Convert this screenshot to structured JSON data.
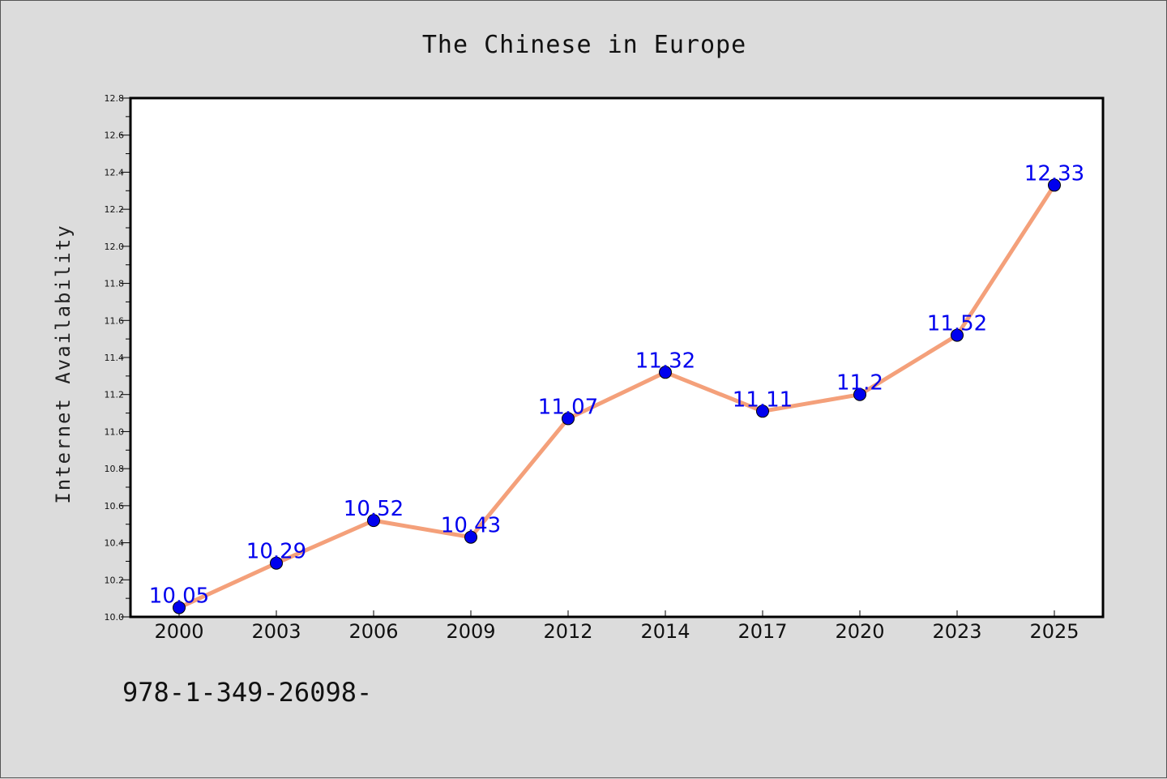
{
  "chart_data": {
    "type": "line",
    "title": "The Chinese in Europe",
    "xlabel": "",
    "ylabel": "Internet Availability",
    "categories": [
      "2000",
      "2003",
      "2006",
      "2009",
      "2012",
      "2014",
      "2017",
      "2020",
      "2023",
      "2025"
    ],
    "series": [
      {
        "values": [
          10.05,
          10.29,
          10.52,
          10.43,
          11.07,
          11.32,
          11.11,
          11.2,
          11.52,
          12.33
        ],
        "data_labels": [
          "10.05",
          "10.29",
          "10.52",
          "10.43",
          "11.07",
          "11.32",
          "11.11",
          "11.2",
          "11.52",
          "12.33"
        ],
        "line_color": "#f4a07a",
        "marker_color": "#0000ee"
      }
    ],
    "ylim": [
      10.0,
      12.8
    ],
    "yticks": [
      "10.0",
      "10.2",
      "10.4",
      "10.6",
      "10.8",
      "11.0",
      "11.2",
      "11.4",
      "11.6",
      "11.8",
      "12.0",
      "12.2",
      "12.4",
      "12.6",
      "12.8"
    ],
    "grid": false,
    "legend": "none"
  },
  "footnote": "978-1-349-26098-",
  "colors": {
    "background": "#dcdcdc",
    "plot_background": "#ffffff",
    "axes": "#000000"
  }
}
